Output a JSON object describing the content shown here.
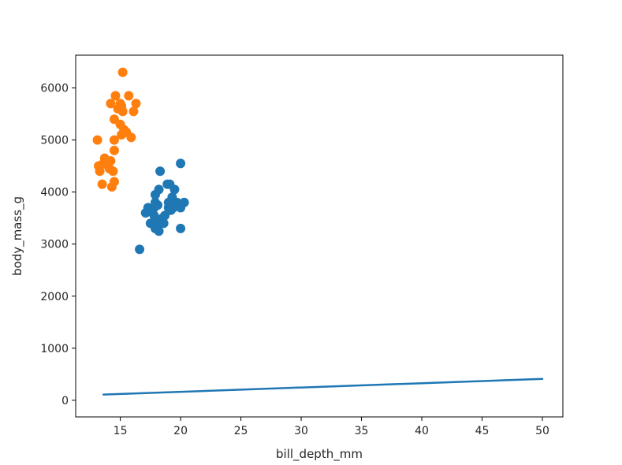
{
  "chart_data": {
    "type": "scatter",
    "title": "",
    "xlabel": "bill_depth_mm",
    "ylabel": "body_mass_g",
    "xlim": [
      11.3,
      51.7
    ],
    "ylim": [
      -320,
      6630
    ],
    "xticks": [
      15,
      20,
      25,
      30,
      35,
      40,
      45,
      50
    ],
    "yticks": [
      0,
      1000,
      2000,
      3000,
      4000,
      5000,
      6000
    ],
    "grid": false,
    "legend": "none",
    "colors": {
      "series_blue": "#1f77b4",
      "series_orange": "#ff7f0e",
      "line_blue": "#1f77b4"
    },
    "series": [
      {
        "kind": "scatter",
        "color": "#1f77b4",
        "points": [
          [
            16.6,
            2900
          ],
          [
            17.1,
            3600
          ],
          [
            17.3,
            3700
          ],
          [
            17.4,
            3650
          ],
          [
            17.5,
            3400
          ],
          [
            17.8,
            3550
          ],
          [
            17.8,
            3700
          ],
          [
            17.9,
            3300
          ],
          [
            17.9,
            3800
          ],
          [
            17.9,
            3950
          ],
          [
            18.0,
            3450
          ],
          [
            18.1,
            3350
          ],
          [
            18.1,
            3750
          ],
          [
            18.2,
            3250
          ],
          [
            18.2,
            4050
          ],
          [
            18.3,
            4400
          ],
          [
            18.5,
            3500
          ],
          [
            18.6,
            3400
          ],
          [
            18.7,
            3550
          ],
          [
            18.9,
            4150
          ],
          [
            19.0,
            3700
          ],
          [
            19.0,
            3800
          ],
          [
            19.1,
            4150
          ],
          [
            19.2,
            3650
          ],
          [
            19.3,
            3900
          ],
          [
            19.4,
            3700
          ],
          [
            19.5,
            4050
          ],
          [
            19.6,
            3750
          ],
          [
            19.7,
            3800
          ],
          [
            20.0,
            3300
          ],
          [
            20.0,
            3700
          ],
          [
            20.0,
            4550
          ],
          [
            20.3,
            3800
          ]
        ]
      },
      {
        "kind": "scatter",
        "color": "#ff7f0e",
        "points": [
          [
            13.1,
            5000
          ],
          [
            13.2,
            4500
          ],
          [
            13.3,
            4400
          ],
          [
            13.5,
            4150
          ],
          [
            13.6,
            4550
          ],
          [
            13.7,
            4650
          ],
          [
            14.0,
            4500
          ],
          [
            14.1,
            4450
          ],
          [
            14.2,
            4600
          ],
          [
            14.2,
            5700
          ],
          [
            14.3,
            4100
          ],
          [
            14.4,
            4400
          ],
          [
            14.5,
            4200
          ],
          [
            14.5,
            4800
          ],
          [
            14.5,
            5000
          ],
          [
            14.5,
            5400
          ],
          [
            14.6,
            5850
          ],
          [
            14.8,
            5600
          ],
          [
            15.0,
            5700
          ],
          [
            15.0,
            5300
          ],
          [
            15.1,
            5650
          ],
          [
            15.1,
            5100
          ],
          [
            15.2,
            6300
          ],
          [
            15.2,
            5550
          ],
          [
            15.3,
            5200
          ],
          [
            15.5,
            5150
          ],
          [
            15.7,
            5850
          ],
          [
            15.9,
            5050
          ],
          [
            16.1,
            5550
          ],
          [
            16.3,
            5700
          ]
        ]
      },
      {
        "kind": "line",
        "color": "#1f77b4",
        "points": [
          [
            13.6,
            110
          ],
          [
            50.0,
            410
          ]
        ]
      }
    ]
  }
}
